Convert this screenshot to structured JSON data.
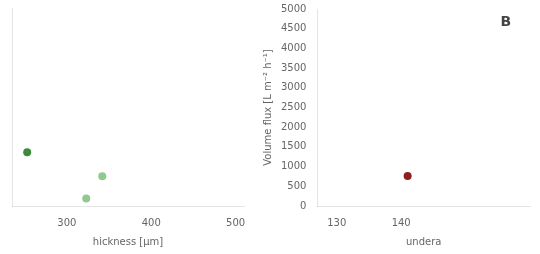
{
  "chart_data": [
    {
      "type": "scatter",
      "xlabel": "hickness [μm]",
      "x": [
        253,
        323,
        342
      ],
      "values": [
        1360,
        190,
        750
      ],
      "colors": [
        "#3a8c3a",
        "#90c990",
        "#90c990"
      ],
      "xlim": [
        235,
        510
      ],
      "xticks": [
        300,
        400,
        500
      ],
      "ylim": [
        0,
        5000
      ],
      "tick_labels": "x",
      "grid": false
    },
    {
      "type": "scatter",
      "xlabel": "undera",
      "ylabel": "Volume flux [L m⁻² h⁻¹]",
      "annotation": "B",
      "x": [
        141
      ],
      "values": [
        760
      ],
      "colors": [
        "#8b2020"
      ],
      "xlim": [
        127,
        160
      ],
      "xticks": [
        130,
        140
      ],
      "ylim": [
        0,
        5000
      ],
      "yticks": [
        0,
        500,
        1000,
        1500,
        2000,
        2500,
        3000,
        3500,
        4000,
        4500,
        5000
      ],
      "grid": false
    }
  ]
}
